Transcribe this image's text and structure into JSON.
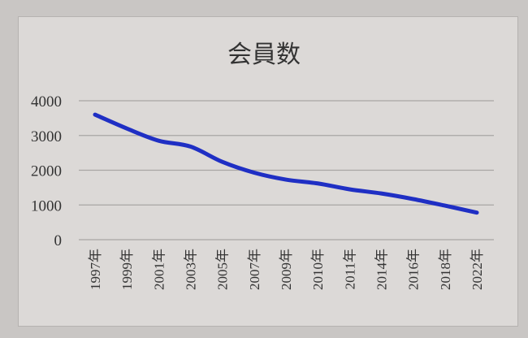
{
  "chart_data": {
    "type": "line",
    "title": "会員数",
    "xlabel": "",
    "ylabel": "",
    "categories": [
      "1997年",
      "1999年",
      "2001年",
      "2003年",
      "2005年",
      "2007年",
      "2009年",
      "2010年",
      "2011年",
      "2014年",
      "2016年",
      "2018年",
      "2022年"
    ],
    "series": [
      {
        "values": [
          3600,
          3200,
          2850,
          2680,
          2240,
          1930,
          1730,
          1620,
          1450,
          1330,
          1170,
          980,
          780
        ],
        "color": "#1f2fc4"
      }
    ],
    "ylim": [
      0,
      4000
    ],
    "yticks": [
      "0",
      "1000",
      "2000",
      "3000",
      "4000"
    ],
    "grid": true,
    "legend": "none"
  }
}
